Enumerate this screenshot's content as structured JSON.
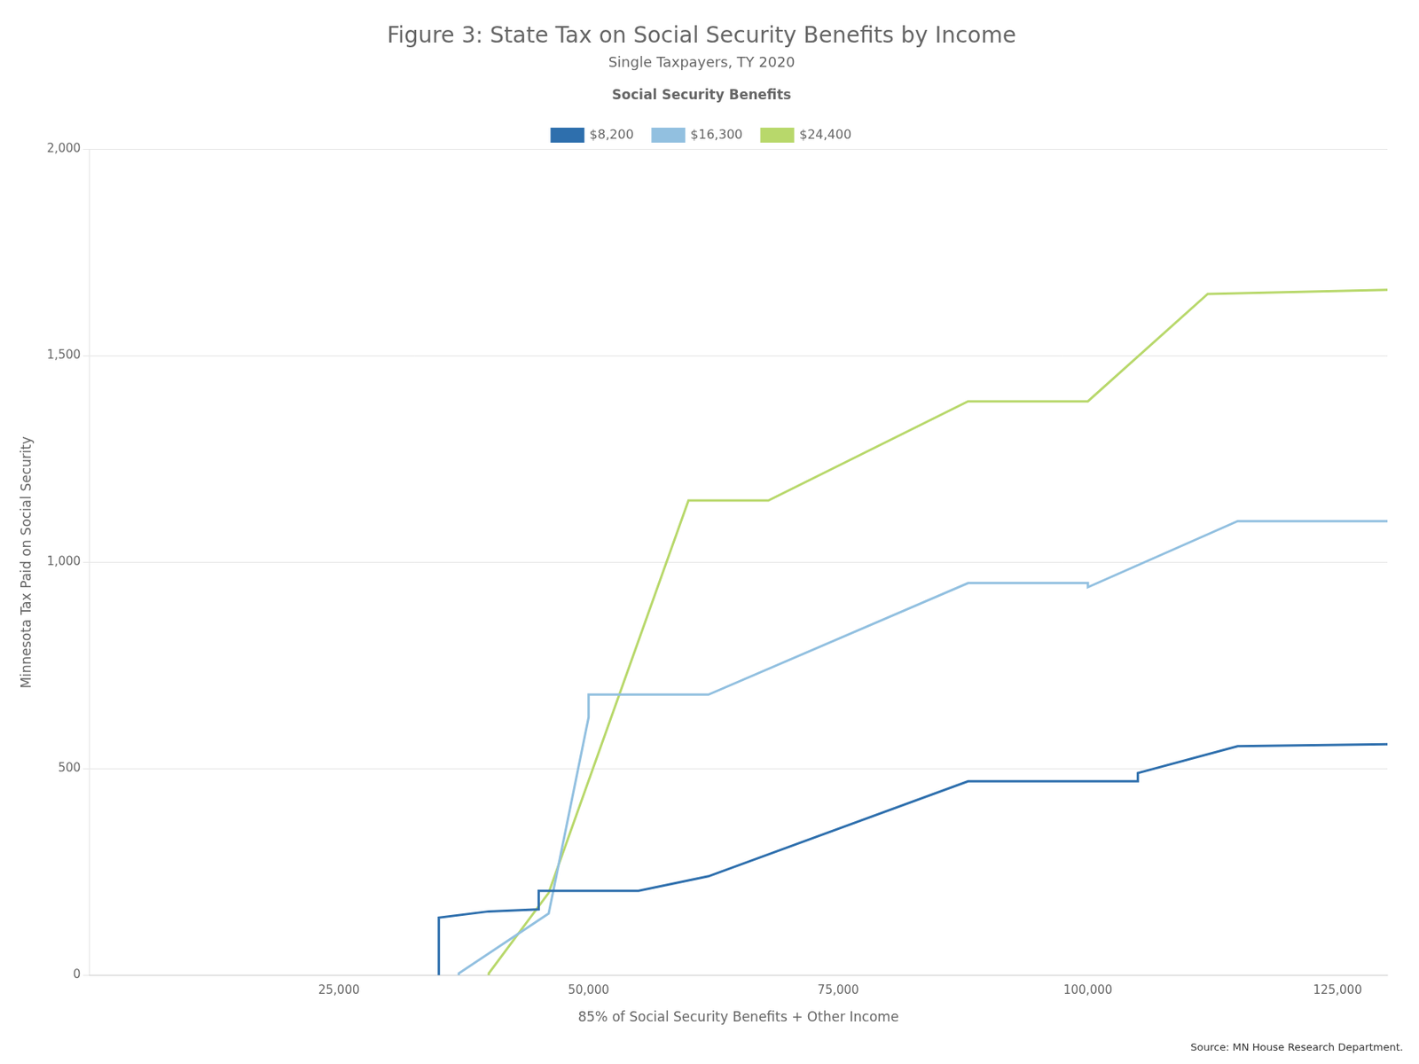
{
  "chart_data": {
    "type": "line",
    "title": "Figure 3: State Tax on Social Security Benefits by Income",
    "subtitle": "Single Taxpayers, TY 2020",
    "legend_title": "Social Security Benefits",
    "x_label": "85% of Social Security Benefits + Other Income",
    "y_label": "Minnesota Tax Paid on Social Security",
    "source": "Source: MN House Research Department.",
    "xlim": [
      0,
      130000
    ],
    "ylim": [
      0,
      2000
    ],
    "xticks": [
      {
        "value": 25000,
        "label": "25,000"
      },
      {
        "value": 50000,
        "label": "50,000"
      },
      {
        "value": 75000,
        "label": "75,000"
      },
      {
        "value": 100000,
        "label": "100,000"
      },
      {
        "value": 125000,
        "label": "125,000"
      }
    ],
    "yticks": [
      0,
      500,
      {
        "value": 1000,
        "label": "1,000"
      },
      {
        "value": 1500,
        "label": "1,500"
      },
      {
        "value": 2000,
        "label": "2,000"
      }
    ],
    "grid": "y",
    "legend": "top",
    "series": [
      {
        "name": "$8,200",
        "color": "#2e6fad",
        "x": [
          35000,
          35000,
          40000,
          40000,
          45000,
          45000,
          55000,
          55000,
          62000,
          62000,
          88000,
          88000,
          105000,
          105000,
          115000,
          115000,
          130000
        ],
        "values": [
          0,
          140,
          155,
          155,
          160,
          205,
          205,
          205,
          240,
          240,
          470,
          470,
          470,
          490,
          555,
          555,
          560
        ]
      },
      {
        "name": "$16,300",
        "color": "#92c0e0",
        "x": [
          37000,
          37000,
          46000,
          46000,
          50000,
          50000,
          62000,
          62000,
          88000,
          88000,
          100000,
          100000,
          115000,
          115000,
          130000
        ],
        "values": [
          0,
          5,
          150,
          150,
          625,
          680,
          680,
          680,
          950,
          950,
          950,
          940,
          1100,
          1100,
          1100
        ]
      },
      {
        "name": "$24,400",
        "color": "#b8d86b",
        "x": [
          40000,
          40000,
          46000,
          46000,
          60000,
          60000,
          68000,
          68000,
          88000,
          88000,
          100000,
          100000,
          112000,
          112000,
          130000
        ],
        "values": [
          0,
          5,
          200,
          200,
          1150,
          1150,
          1150,
          1150,
          1390,
          1390,
          1390,
          1390,
          1650,
          1650,
          1660
        ]
      }
    ]
  }
}
